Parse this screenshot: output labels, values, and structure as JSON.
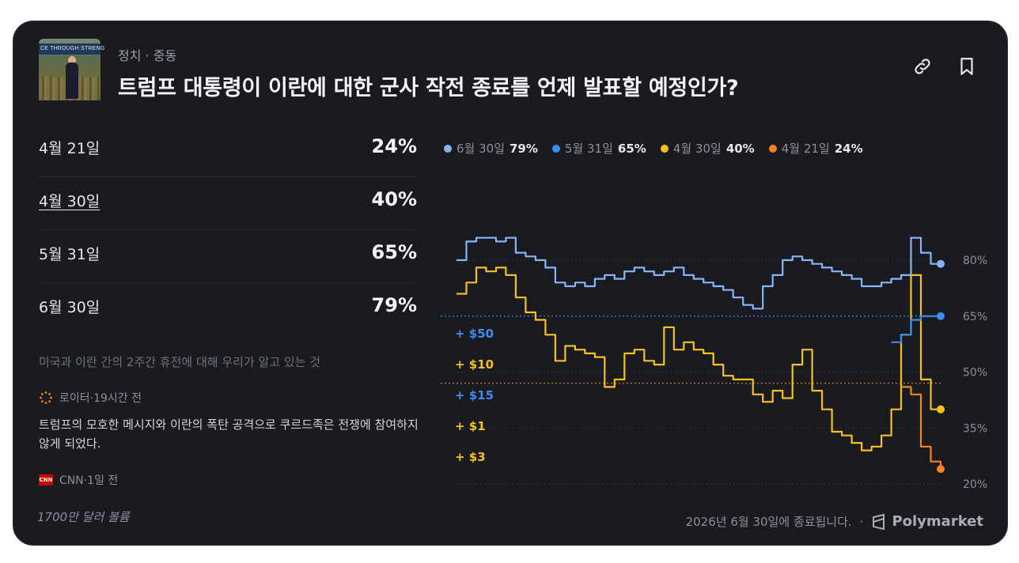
{
  "header": {
    "category": "정치",
    "subcategory": "중동",
    "title": "트럼프 대통령이 이란에 대한 군사 작전 종료를 언제 발표할 예정인가?",
    "thumbnail_text": "CE THROUGH STRENG"
  },
  "icons": {
    "link": "link-icon",
    "bookmark": "bookmark-icon"
  },
  "outcomes": [
    {
      "label": "4월 21일",
      "pct": "24%"
    },
    {
      "label": "4월 30일",
      "pct": "40%"
    },
    {
      "label": "5월 31일",
      "pct": "65%"
    },
    {
      "label": "6월 30일",
      "pct": "79%"
    }
  ],
  "news": {
    "headline": "미국과 이란 간의 2주간 휴전에 대해 우리가 알고 있는 것",
    "source1": "로이터·19시간 전",
    "body": "트럼프의 모호한 메시지와 이란의 폭탄 공격으로 쿠르드족은 전쟁에 참여하지 않게 되었다.",
    "source2": "CNN·1일 전",
    "source2_logo": "CNN"
  },
  "volume": "1700만 달러 볼륨",
  "footer": {
    "end_text": "2026년 6월 30일에 종료됩니다.",
    "separator": "·",
    "brand": "Polymarket"
  },
  "colors": {
    "jun30": "#8ab4f8",
    "may31": "#3b8ef0",
    "apr30": "#f5c121",
    "apr21": "#f5841f",
    "background": "#191b20"
  },
  "chart_data": {
    "type": "line",
    "legend": [
      {
        "name": "6월 30일",
        "value": "79%"
      },
      {
        "name": "5월 31일",
        "value": "65%"
      },
      {
        "name": "4월 30일",
        "value": "40%"
      },
      {
        "name": "4월 21일",
        "value": "24%"
      }
    ],
    "y_ticks": [
      "80%",
      "65%",
      "50%",
      "35%",
      "20%"
    ],
    "y_tick_values": [
      80,
      65,
      50,
      35,
      20
    ],
    "ylim": [
      20,
      80
    ],
    "trade_badges": [
      {
        "label": "+ $50",
        "series": "5월 31일"
      },
      {
        "label": "+ $10",
        "series": "4월 30일"
      },
      {
        "label": "+ $15",
        "series": "5월 31일"
      },
      {
        "label": "+ $1",
        "series": "4월 30일"
      },
      {
        "label": "+ $3",
        "series": "4월 30일"
      }
    ],
    "reference_lines": [
      {
        "series": "5월 31일",
        "value": 65
      },
      {
        "series": "4월 21일",
        "value": 47
      }
    ],
    "series": [
      {
        "name": "6월 30일",
        "values": [
          80,
          85,
          86,
          86,
          85,
          86,
          82,
          81,
          80,
          78,
          74,
          73,
          74,
          73,
          75,
          76,
          75,
          77,
          78,
          77,
          76,
          77,
          78,
          76,
          75,
          74,
          73,
          72,
          70,
          68,
          67,
          73,
          76,
          80,
          81,
          80,
          79,
          78,
          77,
          76,
          75,
          73,
          73,
          74,
          75,
          76,
          86,
          82,
          79,
          79
        ]
      },
      {
        "name": "5월 31일",
        "values": [
          null,
          null,
          null,
          null,
          null,
          null,
          null,
          null,
          null,
          null,
          null,
          null,
          null,
          null,
          null,
          null,
          null,
          null,
          null,
          null,
          null,
          null,
          null,
          null,
          null,
          null,
          null,
          null,
          null,
          null,
          null,
          null,
          null,
          null,
          null,
          null,
          null,
          null,
          null,
          null,
          null,
          null,
          null,
          null,
          58,
          60,
          64,
          65,
          65,
          65
        ]
      },
      {
        "name": "4월 30일",
        "values": [
          71,
          74,
          78,
          77,
          78,
          76,
          70,
          66,
          64,
          60,
          53,
          57,
          56,
          55,
          54,
          46,
          48,
          55,
          56,
          53,
          52,
          62,
          56,
          58,
          56,
          55,
          52,
          49,
          48,
          48,
          44,
          42,
          45,
          43,
          52,
          56,
          45,
          40,
          34,
          33,
          31,
          29,
          30,
          33,
          40,
          60,
          76,
          48,
          40,
          40
        ]
      },
      {
        "name": "4월 21일",
        "values": [
          null,
          null,
          null,
          null,
          null,
          null,
          null,
          null,
          null,
          null,
          null,
          null,
          null,
          null,
          null,
          null,
          null,
          null,
          null,
          null,
          null,
          null,
          null,
          null,
          null,
          null,
          null,
          null,
          null,
          null,
          null,
          null,
          null,
          null,
          null,
          null,
          null,
          null,
          null,
          null,
          null,
          null,
          null,
          null,
          null,
          46,
          44,
          30,
          26,
          24
        ]
      }
    ]
  }
}
